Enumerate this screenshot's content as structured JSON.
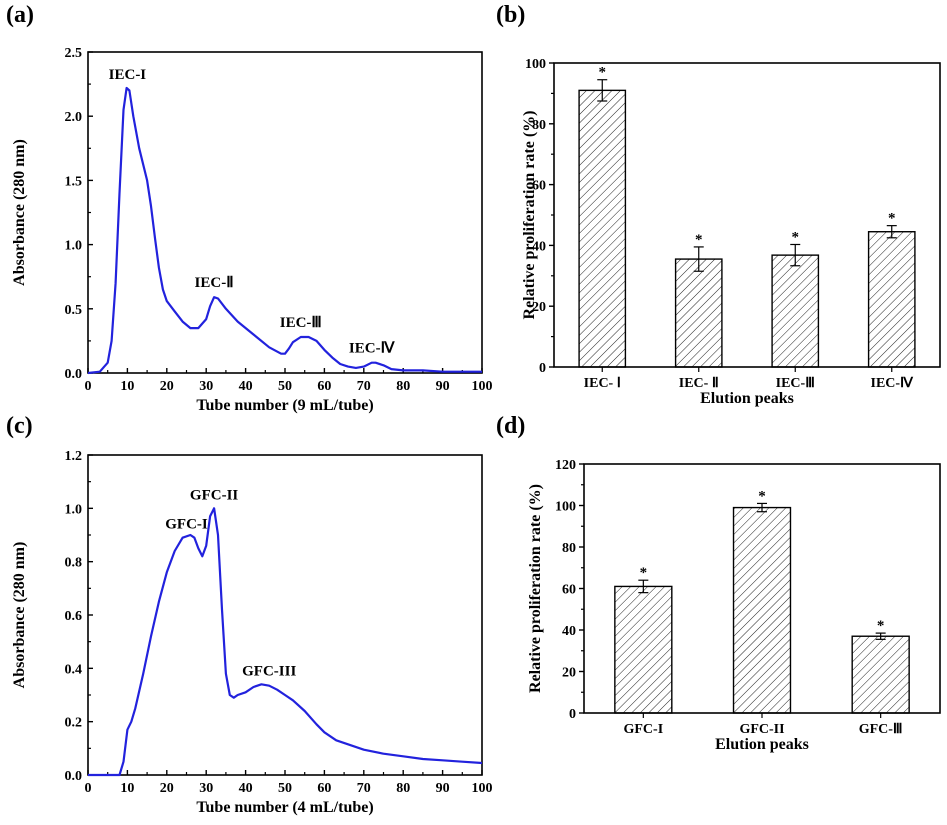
{
  "panels": {
    "a": "(a)",
    "b": "(b)",
    "c": "(c)",
    "d": "(d)"
  },
  "chart_data": [
    {
      "id": "a",
      "type": "line",
      "xlabel": "Tube number (9 mL/tube)",
      "ylabel": "Absorbance (280 nm)",
      "xlim": [
        0,
        100
      ],
      "ylim": [
        0,
        2.5
      ],
      "xticks": [
        "0",
        "10",
        "20",
        "30",
        "40",
        "50",
        "60",
        "70",
        "80",
        "90",
        "100"
      ],
      "yticks": [
        "0.0",
        "0.5",
        "1.0",
        "1.5",
        "2.0",
        "2.5"
      ],
      "color": "#2222dd",
      "series": [
        {
          "x": [
            0,
            3,
            5,
            6,
            7,
            8,
            9,
            9.8,
            10.5,
            11.5,
            13,
            15,
            16,
            17,
            18,
            19,
            20,
            22,
            24,
            26,
            28,
            30,
            31,
            32,
            33,
            35,
            38,
            42,
            46,
            49,
            50,
            51,
            52,
            54,
            56,
            58,
            60,
            62,
            64,
            66,
            68,
            70,
            72,
            73,
            75,
            77,
            80,
            85,
            90,
            95,
            100
          ],
          "y": [
            0,
            0.01,
            0.08,
            0.25,
            0.7,
            1.4,
            2.05,
            2.22,
            2.2,
            2.0,
            1.75,
            1.5,
            1.3,
            1.05,
            0.82,
            0.65,
            0.56,
            0.48,
            0.4,
            0.35,
            0.35,
            0.42,
            0.52,
            0.59,
            0.58,
            0.5,
            0.4,
            0.3,
            0.2,
            0.15,
            0.15,
            0.19,
            0.24,
            0.28,
            0.28,
            0.25,
            0.18,
            0.12,
            0.07,
            0.05,
            0.04,
            0.05,
            0.08,
            0.08,
            0.06,
            0.03,
            0.02,
            0.02,
            0.01,
            0.01,
            0.01
          ]
        }
      ],
      "annotations": [
        {
          "text": "IEC-I",
          "x": 10,
          "y": 2.22
        },
        {
          "text": "IEC-Ⅱ",
          "x": 32,
          "y": 0.6
        },
        {
          "text": "IEC-Ⅲ",
          "x": 54,
          "y": 0.29
        },
        {
          "text": "IEC-Ⅳ",
          "x": 72,
          "y": 0.09
        }
      ]
    },
    {
      "id": "b",
      "type": "bar",
      "xlabel": "Elution peaks",
      "ylabel": "Relative proliferation rate (%)",
      "ylim": [
        0,
        100
      ],
      "yticks": [
        "0",
        "20",
        "40",
        "60",
        "80",
        "100"
      ],
      "categories": [
        "IEC- Ⅰ",
        "IEC- Ⅱ",
        "IEC-Ⅲ",
        "IEC-Ⅳ"
      ],
      "values": [
        91,
        35.5,
        36.8,
        44.5
      ],
      "errors": [
        3.5,
        4.0,
        3.5,
        2.0
      ],
      "significance": [
        "*",
        "*",
        "*",
        "*"
      ]
    },
    {
      "id": "c",
      "type": "line",
      "xlabel": "Tube number (4 mL/tube)",
      "ylabel": "Absorbance (280 nm)",
      "xlim": [
        0,
        100
      ],
      "ylim": [
        0,
        1.2
      ],
      "xticks": [
        "0",
        "10",
        "20",
        "30",
        "40",
        "50",
        "60",
        "70",
        "80",
        "90",
        "100"
      ],
      "yticks": [
        "0.0",
        "0.2",
        "0.4",
        "0.6",
        "0.8",
        "1.0",
        "1.2"
      ],
      "color": "#2222dd",
      "series": [
        {
          "x": [
            0,
            5,
            8,
            9,
            10,
            11,
            12,
            14,
            16,
            18,
            20,
            22,
            24,
            26,
            27,
            28,
            29,
            30,
            31,
            32,
            33,
            34,
            35,
            36,
            37,
            38,
            40,
            42,
            44,
            46,
            48,
            50,
            52,
            55,
            58,
            60,
            63,
            66,
            70,
            75,
            80,
            85,
            90,
            95,
            100
          ],
          "y": [
            0,
            0,
            0,
            0.05,
            0.17,
            0.2,
            0.25,
            0.38,
            0.52,
            0.65,
            0.76,
            0.84,
            0.89,
            0.9,
            0.89,
            0.85,
            0.82,
            0.86,
            0.97,
            1.0,
            0.9,
            0.62,
            0.38,
            0.3,
            0.29,
            0.3,
            0.31,
            0.33,
            0.34,
            0.335,
            0.32,
            0.3,
            0.28,
            0.24,
            0.19,
            0.16,
            0.13,
            0.115,
            0.095,
            0.08,
            0.07,
            0.06,
            0.055,
            0.05,
            0.045
          ]
        }
      ],
      "annotations": [
        {
          "text": "GFC-I",
          "x": 25,
          "y": 0.89
        },
        {
          "text": "GFC-II",
          "x": 32,
          "y": 1.0
        },
        {
          "text": "GFC-III",
          "x": 46,
          "y": 0.34
        }
      ]
    },
    {
      "id": "d",
      "type": "bar",
      "xlabel": "Elution peaks",
      "ylabel": "Relative proliferation rate (%)",
      "ylim": [
        0,
        120
      ],
      "yticks": [
        "0",
        "20",
        "40",
        "60",
        "80",
        "100",
        "120"
      ],
      "categories": [
        "GFC-I",
        "GFC-II",
        "GFC-Ⅲ"
      ],
      "values": [
        61,
        99,
        37
      ],
      "errors": [
        3.0,
        2.0,
        1.5
      ],
      "significance": [
        "*",
        "*",
        "*"
      ]
    }
  ]
}
